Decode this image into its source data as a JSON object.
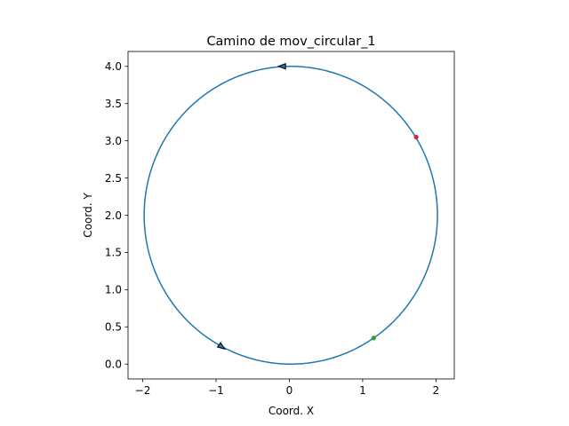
{
  "chart_data": {
    "type": "line",
    "title": "Camino de mov_circular_1",
    "xlabel": "Coord. X",
    "ylabel": "Coord. Y",
    "xlim": [
      -2.2,
      2.25
    ],
    "ylim": [
      -0.2,
      4.2
    ],
    "x_ticks": [
      -2,
      -1,
      0,
      1,
      2
    ],
    "x_tick_labels": [
      "−2",
      "−1",
      "0",
      "1",
      "2"
    ],
    "y_ticks": [
      0.0,
      0.5,
      1.0,
      1.5,
      2.0,
      2.5,
      3.0,
      3.5,
      4.0
    ],
    "y_tick_labels": [
      "0.0",
      "0.5",
      "1.0",
      "1.5",
      "2.0",
      "2.5",
      "3.0",
      "3.5",
      "4.0"
    ],
    "grid": false,
    "series": [
      {
        "color": "#1f77b4",
        "shape": "circle",
        "center": [
          0.02,
          2.0
        ],
        "radius": 2.0
      }
    ],
    "markers": [
      {
        "x": 1.73,
        "y": 3.05,
        "color": "#d62728",
        "shape": "dot"
      },
      {
        "x": 1.15,
        "y": 0.35,
        "color": "#2ca02c",
        "shape": "dot"
      },
      {
        "x": -0.1,
        "y": 4.0,
        "dx": -1.0,
        "dy": 0.0,
        "color": "#000000",
        "shape": "arrow"
      },
      {
        "x": -0.92,
        "y": 0.23,
        "dx": 0.72,
        "dy": -0.52,
        "color": "#000000",
        "shape": "arrow"
      }
    ]
  }
}
